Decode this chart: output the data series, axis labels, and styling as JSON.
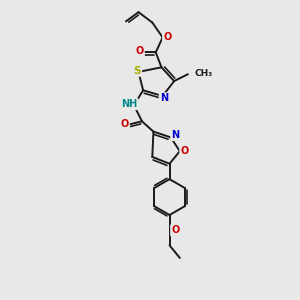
{
  "bg_color": "#e8e8e8",
  "bond_color": "#1a1a1a",
  "bond_width": 1.4,
  "figsize": [
    3.0,
    3.0
  ],
  "dpi": 100,
  "atom_colors": {
    "N": "#0000cc",
    "O": "#cc0000",
    "S": "#aaaa00",
    "C": "#1a1a1a",
    "H": "#008888"
  },
  "font_size": 7.0,
  "xlim": [
    0,
    10
  ],
  "ylim": [
    0,
    13
  ]
}
